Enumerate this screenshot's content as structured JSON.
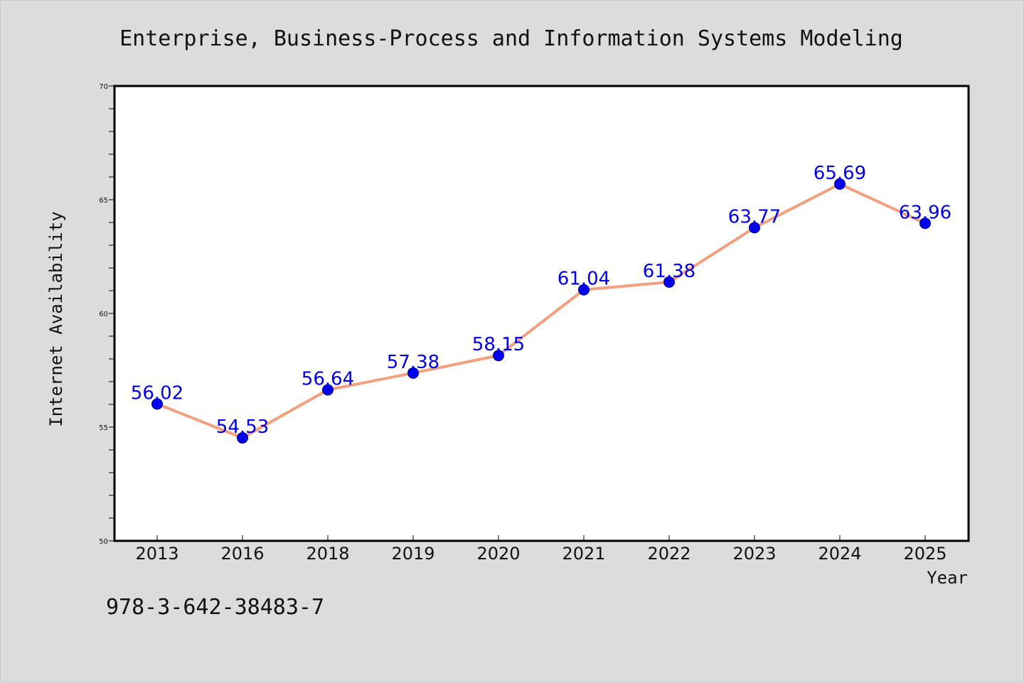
{
  "chart_data": {
    "type": "line",
    "title": "Enterprise, Business-Process and Information Systems Modeling",
    "xlabel": "Year",
    "ylabel": "Internet Availability",
    "categories": [
      "2013",
      "2016",
      "2018",
      "2019",
      "2020",
      "2021",
      "2022",
      "2023",
      "2024",
      "2025"
    ],
    "series": [
      {
        "values": [
          56.02,
          54.53,
          56.64,
          57.38,
          58.15,
          61.04,
          61.38,
          63.77,
          65.69,
          63.96
        ],
        "labels": [
          "56.02",
          "54.53",
          "56.64",
          "57.38",
          "58.15",
          "61.04",
          "61.38",
          "63.77",
          "65.69",
          "63.96"
        ],
        "line_color": "#f4a07e",
        "marker_color": "#0000ee",
        "label_color": "#0000ee"
      }
    ],
    "ylim": [
      50,
      70
    ],
    "yticks": [
      "50",
      "55",
      "60",
      "65",
      "70"
    ],
    "grid": false,
    "annotation": "978-3-642-38483-7"
  }
}
